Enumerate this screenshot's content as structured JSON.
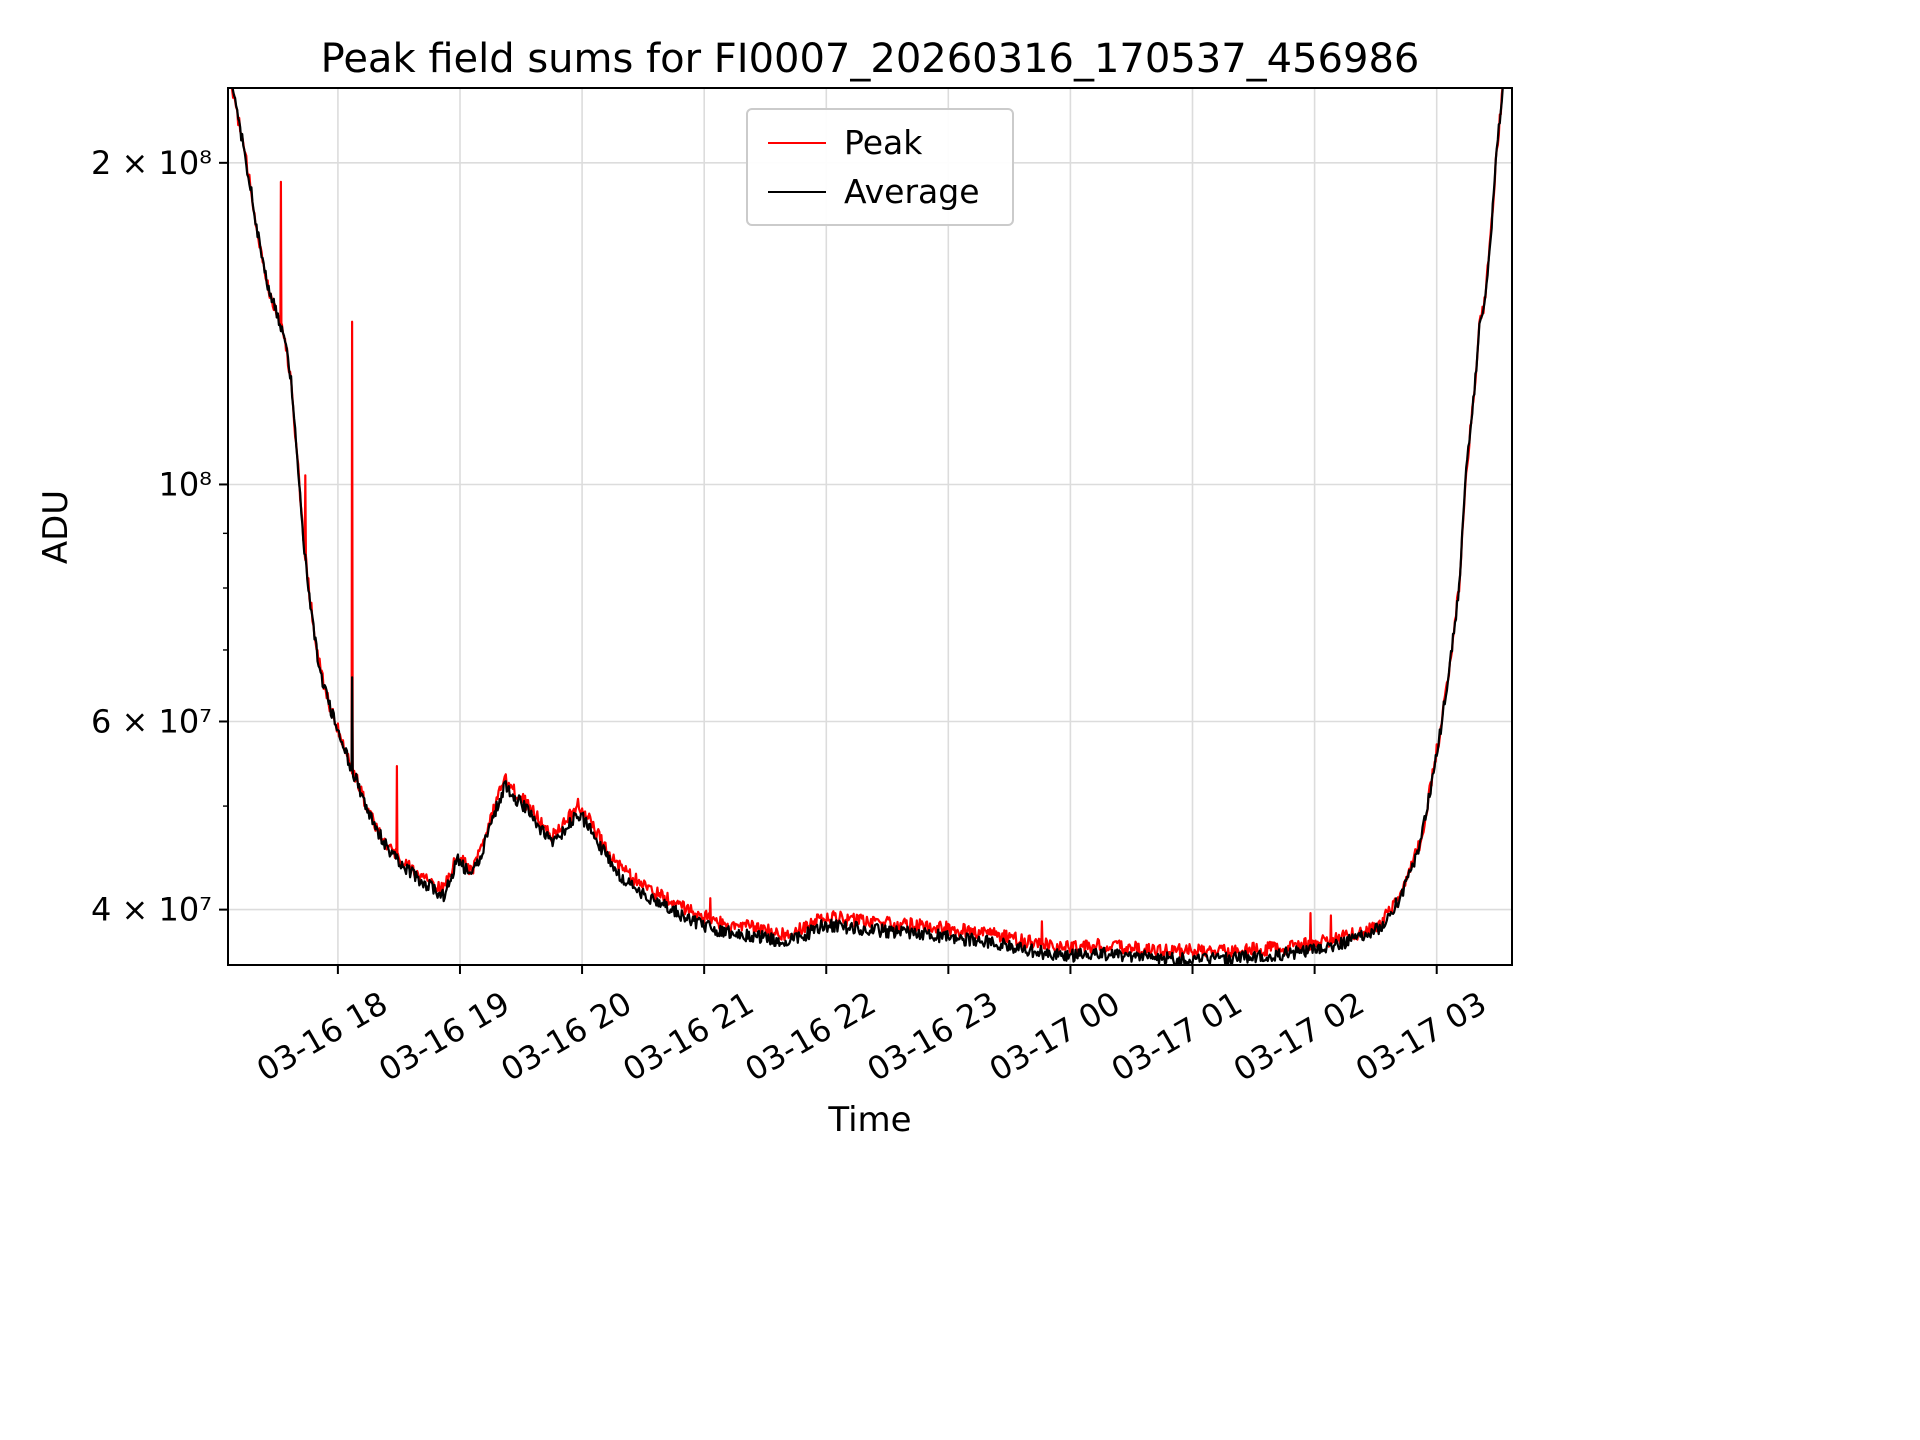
{
  "chart_data": {
    "type": "line",
    "title": "Peak field sums for FI0007_20260316_170537_456986",
    "xlabel": "Time",
    "ylabel": "ADU",
    "yscale": "log",
    "grid": true,
    "seed": 12,
    "sample_step_minutes": 0.5,
    "x_unit": "minutes since 03-16 00:00",
    "xlim": [
      1026,
      1657
    ],
    "ylim": [
      35500000.0,
      235000000.0
    ],
    "colors": {
      "peak": "#ff0000",
      "average": "#000000",
      "grid": "#dcdcdc"
    },
    "legend": {
      "position": "upper center",
      "entries": [
        {
          "label": "Peak",
          "color": "#ff0000"
        },
        {
          "label": "Average",
          "color": "#000000"
        }
      ]
    },
    "xticks": [
      {
        "minute": 1080,
        "label": "03-16 18"
      },
      {
        "minute": 1140,
        "label": "03-16 19"
      },
      {
        "minute": 1200,
        "label": "03-16 20"
      },
      {
        "minute": 1260,
        "label": "03-16 21"
      },
      {
        "minute": 1320,
        "label": "03-16 22"
      },
      {
        "minute": 1380,
        "label": "03-16 23"
      },
      {
        "minute": 1440,
        "label": "03-17 00"
      },
      {
        "minute": 1500,
        "label": "03-17 01"
      },
      {
        "minute": 1560,
        "label": "03-17 02"
      },
      {
        "minute": 1620,
        "label": "03-17 03"
      }
    ],
    "yticks": [
      {
        "v": 200000000.0,
        "label": "2 × 10⁸"
      },
      {
        "v": 100000000.0,
        "label": "10⁸"
      },
      {
        "v": 60000000.0,
        "label": "6 × 10⁷"
      },
      {
        "v": 40000000.0,
        "label": "4 × 10⁷"
      }
    ],
    "yticks_minor": [
      50000000.0,
      70000000.0,
      80000000.0,
      90000000.0
    ],
    "series": [
      {
        "name": "Peak",
        "color": "#ff0000",
        "base": "Average",
        "noise_pct": 1.5,
        "offset_pct_keypoints": [
          [
            1026,
            0.1
          ],
          [
            1085,
            0.3
          ],
          [
            1110,
            0.8
          ],
          [
            1150,
            1.3
          ],
          [
            1190,
            1.5
          ],
          [
            1230,
            1.8
          ],
          [
            1420,
            1.8
          ],
          [
            1520,
            1.6
          ],
          [
            1575,
            1.2
          ],
          [
            1600,
            0.6
          ],
          [
            1630,
            0.2
          ],
          [
            1657,
            0.1
          ]
        ],
        "spikes": [
          [
            1052,
            192000000.0
          ],
          [
            1064,
            102000000.0
          ],
          [
            1087,
            142000000.0
          ],
          [
            1109,
            54500000.0
          ],
          [
            1263,
            41000000.0
          ],
          [
            1426,
            39000000.0
          ],
          [
            1558,
            39700000.0
          ],
          [
            1568,
            39500000.0
          ]
        ]
      },
      {
        "name": "Average",
        "color": "#000000",
        "noise_pct": 1.4,
        "spikes": [
          [
            1087,
            66000000.0
          ]
        ],
        "keypoints": [
          [
            1026,
            250000000.0
          ],
          [
            1029,
            230000000.0
          ],
          [
            1033,
            210000000.0
          ],
          [
            1037,
            190000000.0
          ],
          [
            1041,
            170000000.0
          ],
          [
            1045,
            155000000.0
          ],
          [
            1048,
            148000000.0
          ],
          [
            1051,
            143000000.0
          ],
          [
            1054,
            137000000.0
          ],
          [
            1057,
            125000000.0
          ],
          [
            1059,
            112000000.0
          ],
          [
            1061,
            100000000.0
          ],
          [
            1063,
            89000000.0
          ],
          [
            1066,
            79000000.0
          ],
          [
            1069,
            71000000.0
          ],
          [
            1072,
            66000000.0
          ],
          [
            1076,
            62000000.0
          ],
          [
            1080,
            59000000.0
          ],
          [
            1084,
            56000000.0
          ],
          [
            1088,
            53500000.0
          ],
          [
            1092,
            51000000.0
          ],
          [
            1096,
            49000000.0
          ],
          [
            1100,
            47200000.0
          ],
          [
            1104,
            45800000.0
          ],
          [
            1108,
            44800000.0
          ],
          [
            1112,
            44000000.0
          ],
          [
            1116,
            43300000.0
          ],
          [
            1120,
            42700000.0
          ],
          [
            1124,
            42200000.0
          ],
          [
            1128,
            41700000.0
          ],
          [
            1132,
            41300000.0
          ],
          [
            1136,
            43000000.0
          ],
          [
            1139,
            44800000.0
          ],
          [
            1142,
            43800000.0
          ],
          [
            1146,
            43000000.0
          ],
          [
            1150,
            45000000.0
          ],
          [
            1154,
            47200000.0
          ],
          [
            1158,
            49800000.0
          ],
          [
            1162,
            52200000.0
          ],
          [
            1166,
            51200000.0
          ],
          [
            1171,
            50000000.0
          ],
          [
            1176,
            48800000.0
          ],
          [
            1181,
            47200000.0
          ],
          [
            1185,
            46200000.0
          ],
          [
            1189,
            46800000.0
          ],
          [
            1194,
            48200000.0
          ],
          [
            1198,
            49300000.0
          ],
          [
            1203,
            48000000.0
          ],
          [
            1208,
            46200000.0
          ],
          [
            1213,
            44500000.0
          ],
          [
            1218,
            43200000.0
          ],
          [
            1224,
            42200000.0
          ],
          [
            1230,
            41400000.0
          ],
          [
            1238,
            40600000.0
          ],
          [
            1248,
            39600000.0
          ],
          [
            1258,
            38800000.0
          ],
          [
            1268,
            38200000.0
          ],
          [
            1278,
            37900000.0
          ],
          [
            1288,
            37700000.0
          ],
          [
            1298,
            37300000.0
          ],
          [
            1308,
            37700000.0
          ],
          [
            1318,
            38700000.0
          ],
          [
            1326,
            38600000.0
          ],
          [
            1336,
            38400000.0
          ],
          [
            1348,
            38200000.0
          ],
          [
            1362,
            38000000.0
          ],
          [
            1376,
            37800000.0
          ],
          [
            1390,
            37500000.0
          ],
          [
            1404,
            37200000.0
          ],
          [
            1416,
            36800000.0
          ],
          [
            1428,
            36400000.0
          ],
          [
            1440,
            36200000.0
          ],
          [
            1452,
            36400000.0
          ],
          [
            1464,
            36300000.0
          ],
          [
            1478,
            36100000.0
          ],
          [
            1492,
            36000000.0
          ],
          [
            1506,
            36000000.0
          ],
          [
            1520,
            36000000.0
          ],
          [
            1534,
            36200000.0
          ],
          [
            1548,
            36400000.0
          ],
          [
            1560,
            36700000.0
          ],
          [
            1572,
            37100000.0
          ],
          [
            1582,
            37700000.0
          ],
          [
            1592,
            38500000.0
          ],
          [
            1602,
            41000000.0
          ],
          [
            1612,
            46000000.0
          ],
          [
            1617,
            52000000.0
          ],
          [
            1622,
            59000000.0
          ],
          [
            1627,
            69000000.0
          ],
          [
            1631,
            80000000.0
          ],
          [
            1634,
            100000000.0
          ],
          [
            1638,
            120000000.0
          ],
          [
            1641,
            140000000.0
          ],
          [
            1644,
            150000000.0
          ],
          [
            1647,
            175000000.0
          ],
          [
            1649,
            200000000.0
          ],
          [
            1652,
            230000000.0
          ],
          [
            1655,
            255000000.0
          ],
          [
            1657,
            260000000.0
          ]
        ]
      }
    ]
  }
}
